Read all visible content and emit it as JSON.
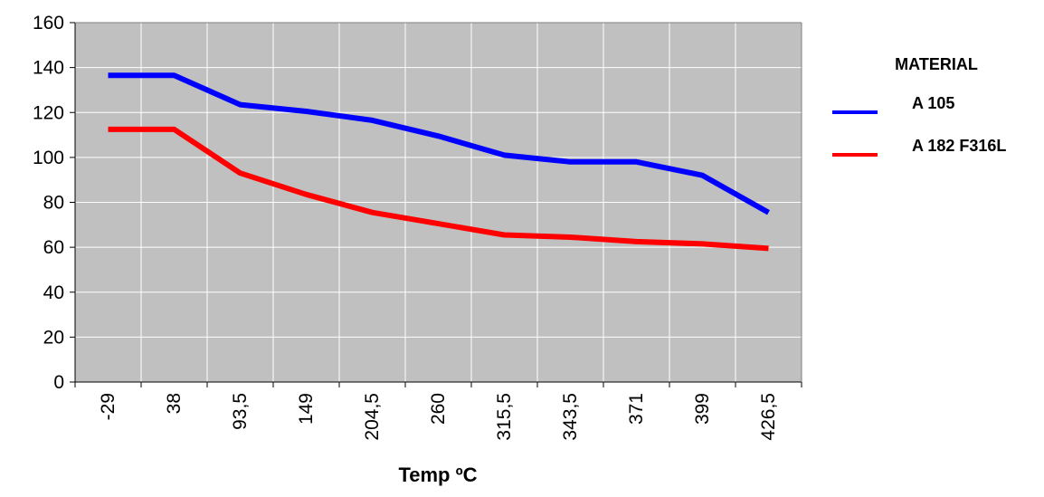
{
  "chart_data": {
    "type": "line",
    "categories": [
      "-29",
      "38",
      "93,5",
      "149",
      "204,5",
      "260",
      "315,5",
      "343,5",
      "371",
      "399",
      "426,5"
    ],
    "xlabel": "Temp ºC",
    "ylabel": "",
    "ylim": [
      0,
      160
    ],
    "yticks": [
      "0",
      "20",
      "40",
      "60",
      "80",
      "100",
      "120",
      "140",
      "160"
    ],
    "grid": true,
    "legend": {
      "title": "MATERIAL",
      "position": "right"
    },
    "series": [
      {
        "name": "A 105",
        "color": "#0000ff",
        "values": [
          136.5,
          136.5,
          123.5,
          120.5,
          116.5,
          109.5,
          101,
          98,
          98,
          92,
          75.5
        ]
      },
      {
        "name": "A 182 F316L",
        "color": "#ff0000",
        "values": [
          112.5,
          112.5,
          93,
          83.5,
          75.5,
          70.5,
          65.5,
          64.5,
          62.5,
          61.5,
          59.5
        ]
      }
    ],
    "plot_background": "#c0c0c0"
  }
}
